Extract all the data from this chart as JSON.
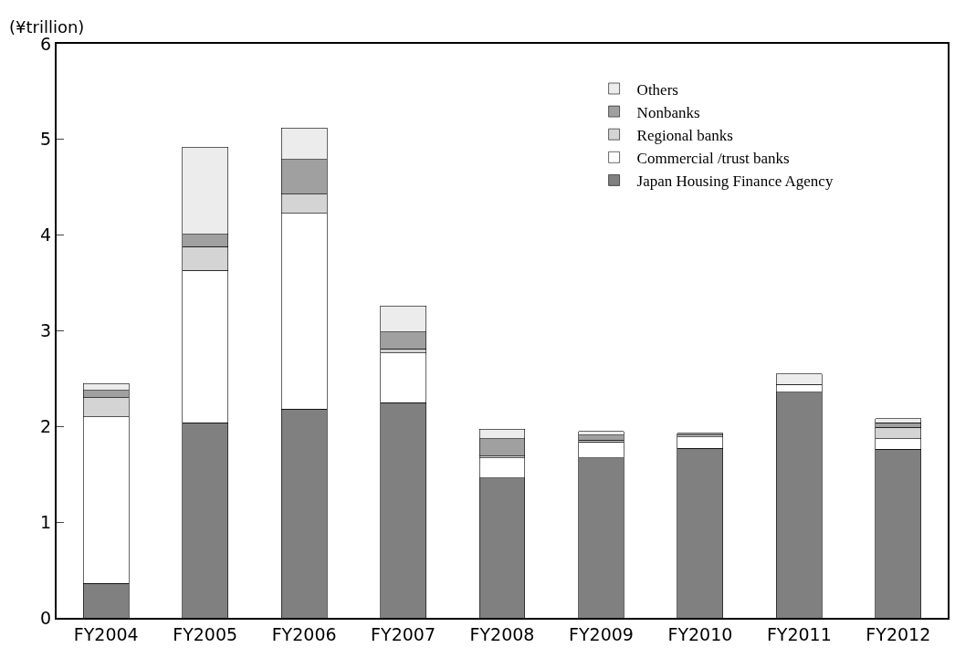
{
  "chart_data": {
    "type": "bar",
    "stacked": true,
    "ylabel": "(¥trillion)",
    "categories": [
      "FY2004",
      "FY2005",
      "FY2006",
      "FY2007",
      "FY2008",
      "FY2009",
      "FY2010",
      "FY2011",
      "FY2012"
    ],
    "series": [
      {
        "name": "Japan Housing Finance Agency",
        "color": "#808080",
        "values": [
          0.36,
          2.04,
          2.18,
          2.25,
          1.46,
          1.67,
          1.77,
          2.36,
          1.76
        ]
      },
      {
        "name": "Commercial /trust banks",
        "color": "#ffffff",
        "values": [
          1.74,
          1.59,
          2.05,
          0.52,
          0.21,
          0.17,
          0.12,
          0.08,
          0.11
        ]
      },
      {
        "name": "Regional banks",
        "color": "#d4d4d4",
        "values": [
          0.2,
          0.25,
          0.2,
          0.04,
          0.02,
          0.02,
          0.02,
          null,
          0.12
        ]
      },
      {
        "name": "Nonbanks",
        "color": "#a0a0a0",
        "values": [
          0.08,
          0.13,
          0.36,
          0.18,
          0.18,
          0.05,
          0.02,
          null,
          0.05
        ]
      },
      {
        "name": "Others",
        "color": "#ececec",
        "values": [
          0.07,
          0.91,
          0.33,
          0.27,
          0.1,
          0.04,
          null,
          0.11,
          0.04
        ]
      }
    ],
    "ylim": [
      0,
      6
    ],
    "yticks": [
      0,
      1,
      2,
      3,
      4,
      5,
      6
    ],
    "grid": false,
    "legend": "top right"
  }
}
